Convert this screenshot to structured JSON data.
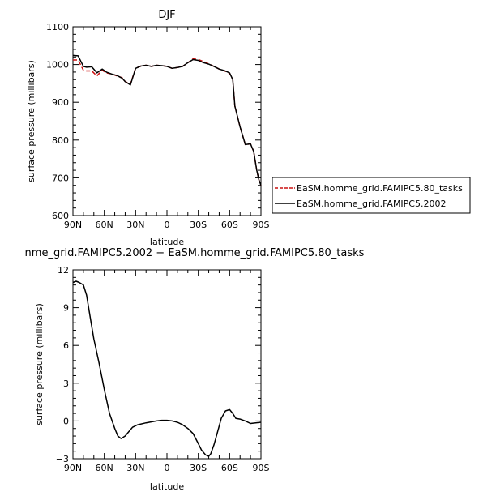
{
  "chart_data": [
    {
      "type": "line",
      "title": "DJF",
      "xlabel": "latitude",
      "ylabel": "surface pressure (millibars)",
      "xlim": [
        90,
        -90
      ],
      "ylim": [
        600,
        1100
      ],
      "xticks": [
        90,
        60,
        30,
        0,
        -30,
        -60,
        -90
      ],
      "xticklabels": [
        "90N",
        "60N",
        "30N",
        "0",
        "30S",
        "60S",
        "90S"
      ],
      "yticks": [
        600,
        700,
        800,
        900,
        1000,
        1100
      ],
      "yticklabels": [
        "600",
        "700",
        "800",
        "900",
        "1000",
        "1100"
      ],
      "grid": false,
      "legend_position": "right",
      "series": [
        {
          "name": "EaSM.homme_grid.FAMIPC5.80_tasks",
          "color": "#cc1111",
          "dash": "dashed",
          "x": [
            90,
            85,
            80,
            77,
            72,
            67,
            62,
            58,
            53,
            48,
            43,
            40,
            35,
            30,
            25,
            20,
            15,
            10,
            5,
            0,
            -5,
            -10,
            -15,
            -20,
            -25,
            -30,
            -35,
            -40,
            -45,
            -50,
            -55,
            -60,
            -63,
            -65,
            -70,
            -75,
            -80,
            -83,
            -86,
            -88,
            -90
          ],
          "y": [
            1012,
            1012,
            985,
            983,
            983,
            970,
            985,
            978,
            975,
            970,
            965,
            955,
            948,
            990,
            996,
            998,
            995,
            998,
            997,
            995,
            990,
            992,
            995,
            1005,
            1015,
            1013,
            1008,
            1002,
            995,
            988,
            983,
            977,
            960,
            890,
            835,
            788,
            790,
            770,
            720,
            695,
            680
          ]
        },
        {
          "name": "EaSM.homme_grid.FAMIPC5.2002",
          "color": "#000000",
          "dash": "solid",
          "x": [
            90,
            85,
            80,
            77,
            72,
            67,
            62,
            58,
            53,
            48,
            43,
            40,
            35,
            30,
            25,
            20,
            15,
            10,
            5,
            0,
            -5,
            -10,
            -15,
            -20,
            -25,
            -30,
            -35,
            -40,
            -45,
            -50,
            -55,
            -60,
            -63,
            -65,
            -70,
            -75,
            -80,
            -83,
            -86,
            -88,
            -90
          ],
          "y": [
            1024,
            1023,
            995,
            993,
            994,
            978,
            988,
            980,
            975,
            971,
            964,
            955,
            946,
            990,
            996,
            998,
            995,
            998,
            997,
            995,
            990,
            992,
            995,
            1005,
            1013,
            1011,
            1005,
            1001,
            995,
            988,
            984,
            978,
            960,
            890,
            835,
            788,
            790,
            770,
            720,
            695,
            680
          ]
        }
      ]
    },
    {
      "type": "line",
      "title": "nme_grid.FAMIPC5.2002 − EaSM.homme_grid.FAMIPC5.80_tasks",
      "xlabel": "latitude",
      "ylabel": "surface pressure (millibars)",
      "xlim": [
        90,
        -90
      ],
      "ylim": [
        -3,
        12
      ],
      "xticks": [
        90,
        60,
        30,
        0,
        -30,
        -60,
        -90
      ],
      "xticklabels": [
        "90N",
        "60N",
        "30N",
        "0",
        "30S",
        "60S",
        "90S"
      ],
      "yticks": [
        -3,
        0,
        3,
        6,
        9,
        12
      ],
      "yticklabels": [
        "−3",
        "0",
        "3",
        "6",
        "9",
        "12"
      ],
      "grid": false,
      "series": [
        {
          "color": "#000000",
          "dash": "solid",
          "x": [
            90,
            87,
            84,
            80,
            77,
            73,
            70,
            65,
            60,
            55,
            50,
            47,
            44,
            42,
            40,
            37,
            33,
            28,
            20,
            10,
            5,
            0,
            -5,
            -10,
            -15,
            -20,
            -25,
            -30,
            -33,
            -37,
            -40,
            -42,
            -45,
            -48,
            -52,
            -56,
            -60,
            -63,
            -66,
            -70,
            -75,
            -80,
            -85,
            -90
          ],
          "y": [
            11.0,
            11.1,
            11.0,
            10.8,
            10.0,
            8.0,
            6.5,
            4.6,
            2.5,
            0.6,
            -0.6,
            -1.2,
            -1.4,
            -1.3,
            -1.2,
            -0.9,
            -0.5,
            -0.3,
            -0.15,
            0.0,
            0.05,
            0.05,
            0.0,
            -0.1,
            -0.3,
            -0.6,
            -1.0,
            -1.8,
            -2.3,
            -2.7,
            -2.8,
            -2.6,
            -1.9,
            -1.0,
            0.2,
            0.8,
            0.9,
            0.6,
            0.2,
            0.15,
            0.0,
            -0.2,
            -0.15,
            -0.1
          ]
        }
      ]
    }
  ]
}
